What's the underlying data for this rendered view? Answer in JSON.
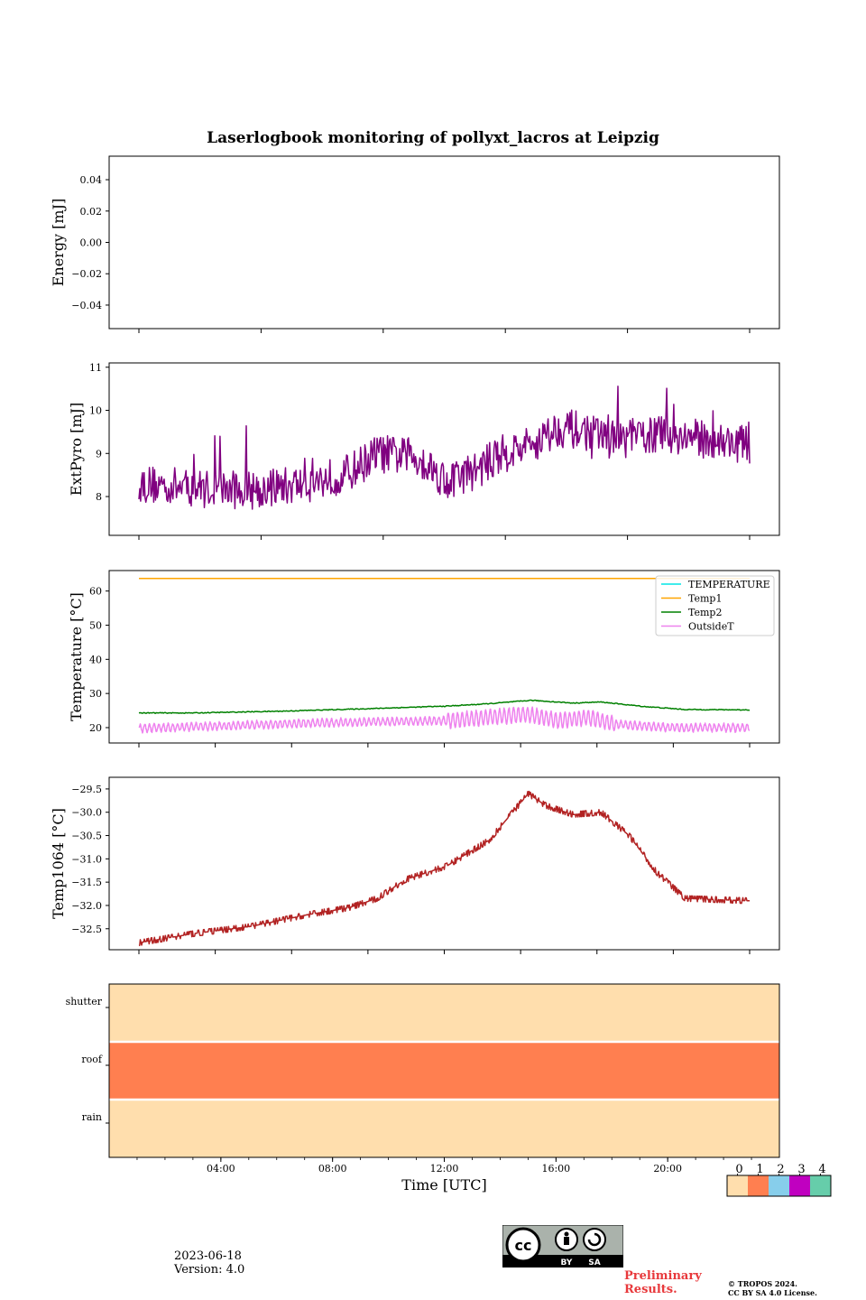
{
  "title": "Laserlogbook monitoring of pollyxt_lacros at Leipzig",
  "footer": {
    "date": "2023-06-18",
    "version": "Version: 4.0",
    "preliminary": [
      "Preliminary",
      "Results."
    ],
    "copyright": [
      "© TROPOS 2024.",
      "CC BY SA 4.0 License."
    ],
    "license_badge": [
      "BY",
      "SA"
    ]
  },
  "colors": {
    "extpyro": "#800080",
    "temperature": "#00e5e5",
    "temp1": "#ffa500",
    "temp2": "#008000",
    "outsideT": "#ee82ee",
    "temp1064": "#b22222",
    "status": [
      "#ffdead",
      "#ff7f50",
      "#87ceeb",
      "#c000c0",
      "#66cdaa"
    ]
  },
  "chart_data": [
    {
      "type": "line",
      "ylabel": "Energy [mJ]",
      "ylim": [
        -0.055,
        0.055
      ],
      "yticks": [
        0.04,
        0.02,
        0.0,
        -0.02,
        -0.04
      ],
      "ytick_labels": [
        "0.04",
        "0.02",
        "0.00",
        "−0.02",
        "−0.04"
      ],
      "series": []
    },
    {
      "type": "line",
      "ylabel": "ExtPyro [mJ]",
      "ylim": [
        7.1,
        11.1
      ],
      "yticks": [
        8,
        9,
        10,
        11
      ],
      "ytick_labels": [
        "8",
        "9",
        "10",
        "11"
      ],
      "x_range_hours": [
        1.0,
        22.8
      ],
      "series": [
        {
          "color_key": "extpyro",
          "noise_amplitude": 0.45,
          "trend": [
            [
              1.0,
              8.3
            ],
            [
              3.0,
              8.2
            ],
            [
              5.0,
              8.15
            ],
            [
              7.0,
              8.3
            ],
            [
              8.5,
              8.55
            ],
            [
              9.5,
              9.0
            ],
            [
              11.0,
              8.9
            ],
            [
              12.0,
              8.35
            ],
            [
              13.0,
              8.6
            ],
            [
              14.0,
              9.0
            ],
            [
              15.0,
              9.2
            ],
            [
              16.0,
              9.6
            ],
            [
              17.0,
              9.5
            ],
            [
              18.0,
              9.3
            ],
            [
              19.5,
              9.45
            ],
            [
              21.0,
              9.35
            ],
            [
              22.8,
              9.2
            ]
          ]
        }
      ]
    },
    {
      "type": "line",
      "ylabel": "Temperature [°C]",
      "ylim": [
        15.5,
        66
      ],
      "yticks": [
        20,
        30,
        40,
        50,
        60
      ],
      "ytick_labels": [
        "20",
        "30",
        "40",
        "50",
        "60"
      ],
      "legend_position": "top-right",
      "x_range_hours": [
        1.0,
        22.8
      ],
      "series": [
        {
          "name": "TEMPERATURE",
          "color_key": "temperature",
          "points": []
        },
        {
          "name": "Temp1",
          "color_key": "temp1",
          "points": [
            [
              1.0,
              63.7
            ],
            [
              22.8,
              63.7
            ]
          ]
        },
        {
          "name": "Temp2",
          "color_key": "temp2",
          "points": [
            [
              1.0,
              24.3
            ],
            [
              3.0,
              24.3
            ],
            [
              6.0,
              24.8
            ],
            [
              9.0,
              25.5
            ],
            [
              12.0,
              26.3
            ],
            [
              13.5,
              27.0
            ],
            [
              15.0,
              28.0
            ],
            [
              16.5,
              27.2
            ],
            [
              17.5,
              27.5
            ],
            [
              19.0,
              26.2
            ],
            [
              20.5,
              25.3
            ],
            [
              22.8,
              25.2
            ]
          ]
        },
        {
          "name": "OutsideT",
          "color_key": "outsideT",
          "points": [
            [
              1.0,
              19.8
            ],
            [
              4.0,
              20.5
            ],
            [
              7.0,
              21.3
            ],
            [
              10.0,
              21.8
            ],
            [
              12.0,
              22.0
            ],
            [
              13.5,
              23.0
            ],
            [
              14.8,
              24.0
            ],
            [
              16.0,
              22.0
            ],
            [
              17.0,
              23.0
            ],
            [
              18.0,
              21.0
            ],
            [
              20.0,
              20.0
            ],
            [
              22.8,
              20.0
            ]
          ]
        }
      ]
    },
    {
      "type": "line",
      "ylabel": "Temp1064 [°C]",
      "ylim": [
        -32.95,
        -29.25
      ],
      "yticks": [
        -29.5,
        -30.0,
        -30.5,
        -31.0,
        -31.5,
        -32.0,
        -32.5
      ],
      "ytick_labels": [
        "−29.5",
        "−30.0",
        "−30.5",
        "−31.0",
        "−31.5",
        "−32.0",
        "−32.5"
      ],
      "x_range_hours": [
        1.0,
        22.8
      ],
      "series": [
        {
          "color_key": "temp1064",
          "noise_amplitude": 0.06,
          "points": [
            [
              1.0,
              -32.8
            ],
            [
              3.0,
              -32.6
            ],
            [
              5.0,
              -32.45
            ],
            [
              7.0,
              -32.2
            ],
            [
              8.5,
              -32.05
            ],
            [
              9.5,
              -31.85
            ],
            [
              10.5,
              -31.45
            ],
            [
              12.0,
              -31.15
            ],
            [
              13.5,
              -30.6
            ],
            [
              14.9,
              -29.6
            ],
            [
              15.5,
              -29.85
            ],
            [
              16.5,
              -30.05
            ],
            [
              17.5,
              -30.0
            ],
            [
              18.5,
              -30.5
            ],
            [
              19.5,
              -31.3
            ],
            [
              20.5,
              -31.85
            ],
            [
              22.8,
              -31.9
            ]
          ]
        }
      ]
    },
    {
      "type": "heatmap",
      "rows": [
        "shutter",
        "roof",
        "rain"
      ],
      "row_values": [
        0,
        1,
        0
      ],
      "xlabel": "Time [UTC]",
      "xlim_hours": [
        0,
        24
      ],
      "xticks_hours": [
        4,
        8,
        12,
        16,
        20
      ],
      "xtick_labels": [
        "04:00",
        "08:00",
        "12:00",
        "16:00",
        "20:00"
      ],
      "colorbar_labels": [
        "0",
        "1",
        "2",
        "3",
        "4"
      ]
    }
  ]
}
